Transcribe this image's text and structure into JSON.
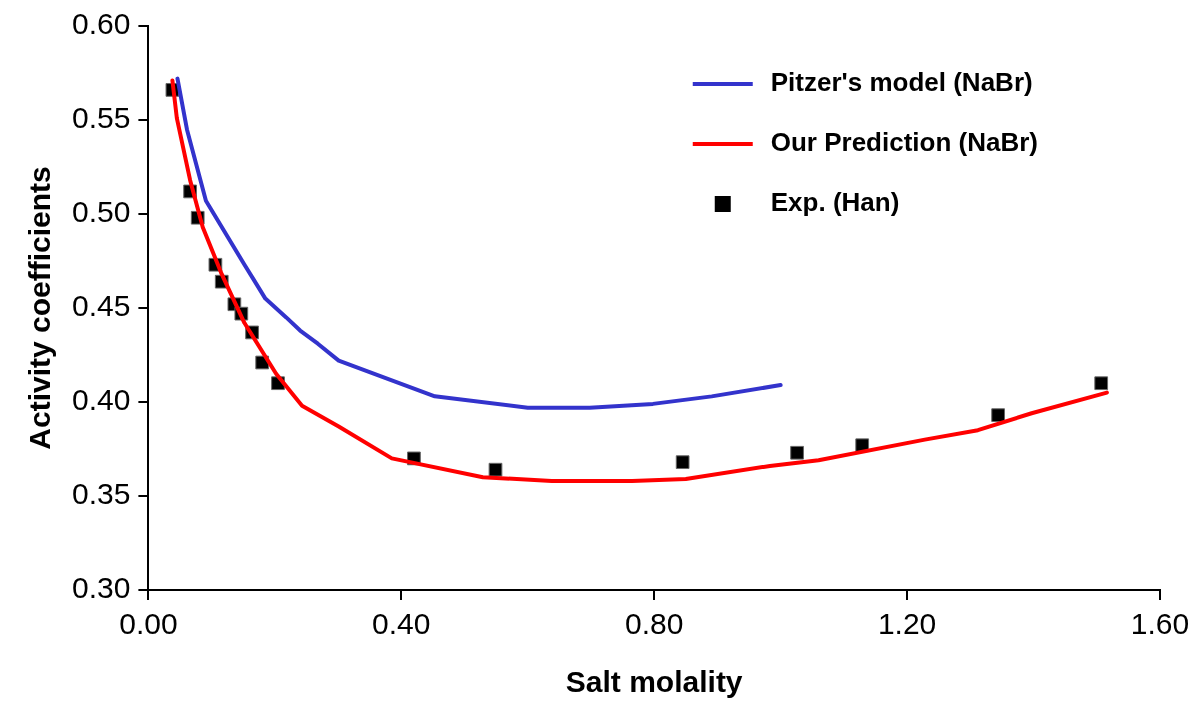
{
  "chart_data": {
    "type": "line",
    "xlabel": "Salt molality",
    "ylabel": "Activity coefficients",
    "xlim": [
      0,
      1.6
    ],
    "xticks": [
      {
        "value": 0,
        "label": "0.00"
      },
      {
        "value": 0.4,
        "label": "0.40"
      },
      {
        "value": 0.8,
        "label": "0.80"
      },
      {
        "value": 1.2,
        "label": "1.20"
      },
      {
        "value": 1.6,
        "label": "1.60"
      }
    ],
    "ylim": [
      0.3,
      0.6
    ],
    "yticks": [
      {
        "value": 0.3,
        "label": "0.30"
      },
      {
        "value": 0.35,
        "label": "0.35"
      },
      {
        "value": 0.4,
        "label": "0.40"
      },
      {
        "value": 0.45,
        "label": "0.45"
      },
      {
        "value": 0.5,
        "label": "0.50"
      },
      {
        "value": 0.55,
        "label": "0.55"
      },
      {
        "value": 0.6,
        "label": "0.60"
      }
    ],
    "grid": false,
    "legend": "top right",
    "line_style": "solid",
    "series": [
      {
        "name": "Pitzer's model (NaBr)",
        "marker": "none",
        "color": "#3333cc",
        "x": [
          0.046,
          0.061,
          0.091,
          0.152,
          0.185,
          0.218,
          0.24,
          0.268,
          0.301,
          0.453,
          0.6,
          0.698,
          0.798,
          0.891,
          1.0
        ],
        "values": [
          0.572,
          0.545,
          0.507,
          0.473,
          0.455,
          0.445,
          0.438,
          0.431,
          0.422,
          0.403,
          0.397,
          0.397,
          0.399,
          0.403,
          0.409
        ]
      },
      {
        "name": "Our Prediction (NaBr)",
        "marker": "none",
        "color": "#ff0000",
        "x": [
          0.038,
          0.045,
          0.066,
          0.086,
          0.116,
          0.152,
          0.202,
          0.243,
          0.301,
          0.385,
          0.529,
          0.638,
          0.765,
          0.85,
          0.983,
          1.06,
          1.228,
          1.312,
          1.397,
          1.516
        ],
        "values": [
          0.571,
          0.551,
          0.518,
          0.493,
          0.468,
          0.442,
          0.415,
          0.398,
          0.387,
          0.37,
          0.36,
          0.358,
          0.358,
          0.359,
          0.366,
          0.369,
          0.38,
          0.385,
          0.394,
          0.405
        ]
      },
      {
        "name": "Exp. (Han)",
        "type": "scatter",
        "marker": "square",
        "color": "#000000",
        "x": [
          0.038,
          0.066,
          0.078,
          0.106,
          0.116,
          0.136,
          0.147,
          0.164,
          0.18,
          0.205,
          0.42,
          0.549,
          0.845,
          1.026,
          1.129,
          1.344,
          1.507
        ],
        "values": [
          0.566,
          0.512,
          0.498,
          0.473,
          0.464,
          0.452,
          0.447,
          0.437,
          0.421,
          0.41,
          0.37,
          0.364,
          0.368,
          0.373,
          0.377,
          0.393,
          0.41
        ]
      }
    ]
  }
}
